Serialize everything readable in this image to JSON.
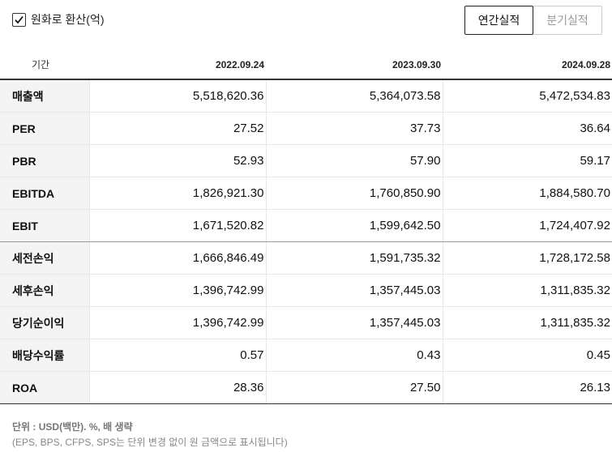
{
  "options": {
    "convert_label": "원화로 환산(억)",
    "convert_checked": true,
    "tabs": [
      {
        "label": "연간실적",
        "active": true
      },
      {
        "label": "분기실적",
        "active": false
      }
    ]
  },
  "table": {
    "period_header": "기간",
    "dates": [
      "2022.09.24",
      "2023.09.30",
      "2024.09.28"
    ],
    "rows": [
      {
        "label": "매출액",
        "values": [
          "5,518,620.36",
          "5,364,073.58",
          "5,472,534.83"
        ]
      },
      {
        "label": "PER",
        "values": [
          "27.52",
          "37.73",
          "36.64"
        ]
      },
      {
        "label": "PBR",
        "values": [
          "52.93",
          "57.90",
          "59.17"
        ]
      },
      {
        "label": "EBITDA",
        "values": [
          "1,826,921.30",
          "1,760,850.90",
          "1,884,580.70"
        ]
      },
      {
        "label": "EBIT",
        "values": [
          "1,671,520.82",
          "1,599,642.50",
          "1,724,407.92"
        ]
      },
      {
        "label": "세전손익",
        "values": [
          "1,666,846.49",
          "1,591,735.32",
          "1,728,172.58"
        ]
      },
      {
        "label": "세후손익",
        "values": [
          "1,396,742.99",
          "1,357,445.03",
          "1,311,835.32"
        ]
      },
      {
        "label": "당기순이익",
        "values": [
          "1,396,742.99",
          "1,357,445.03",
          "1,311,835.32"
        ]
      },
      {
        "label": "배당수익률",
        "values": [
          "0.57",
          "0.43",
          "0.45"
        ]
      },
      {
        "label": "ROA",
        "values": [
          "28.36",
          "27.50",
          "26.13"
        ]
      }
    ]
  },
  "footnote": {
    "unit": "단위 : USD(백만). %, 배 생략",
    "note": "(EPS, BPS, CFPS, SPS는 단위 변경 없이 원 금액으로 표시됩니다)"
  }
}
